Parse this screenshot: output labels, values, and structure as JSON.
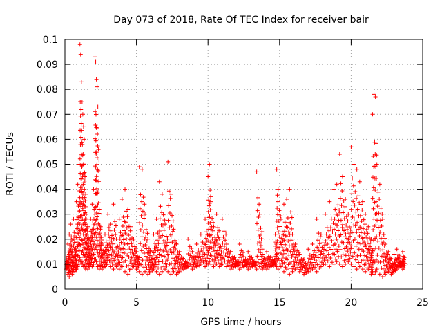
{
  "chart_data": {
    "type": "scatter",
    "title": "Day 073 of 2018, Rate Of TEC Index for receiver bair",
    "xlabel": "GPS time / hours",
    "ylabel": "ROTI / TECUs",
    "xlim": [
      0,
      25
    ],
    "ylim": [
      0,
      0.1
    ],
    "xticks": [
      0,
      5,
      10,
      15,
      20,
      25
    ],
    "xtick_labels": [
      "0",
      "5",
      "10",
      "15",
      "20",
      "25"
    ],
    "yticks": [
      0,
      0.01,
      0.02,
      0.03,
      0.04,
      0.05,
      0.06,
      0.07,
      0.08,
      0.09,
      0.1
    ],
    "ytick_labels": [
      "0",
      "0.01",
      "0.02",
      "0.03",
      "0.04",
      "0.05",
      "0.06",
      "0.07",
      "0.08",
      "0.09",
      "0.1"
    ],
    "grid": true,
    "marker": "+",
    "color": "#ff0000",
    "series": [
      {
        "x": [
          0.1,
          0.2,
          0.3,
          0.4,
          0.5,
          0.6,
          0.7,
          0.8,
          0.9,
          1.0,
          1.05,
          1.1,
          1.15,
          1.2,
          1.25,
          1.3,
          1.35,
          1.4,
          1.45,
          1.5,
          1.6,
          1.7,
          1.8,
          1.9,
          2.0,
          2.1,
          2.15,
          2.2,
          2.25,
          2.3,
          2.4,
          2.5,
          2.6,
          2.8,
          3.0,
          3.2,
          3.4,
          3.6,
          3.8,
          4.0,
          4.2,
          4.4,
          4.6,
          4.8,
          5.0,
          5.2,
          5.4,
          5.6,
          5.8,
          6.0,
          6.2,
          6.4,
          6.6,
          6.8,
          7.0,
          7.2,
          7.4,
          7.6,
          7.8,
          8.0,
          8.3,
          8.6,
          8.9,
          9.2,
          9.5,
          9.8,
          10.0,
          10.1,
          10.2,
          10.4,
          10.6,
          10.8,
          11.0,
          11.3,
          11.6,
          11.9,
          12.2,
          12.5,
          12.8,
          13.1,
          13.4,
          13.6,
          13.8,
          14.1,
          14.4,
          14.7,
          14.8,
          14.9,
          15.1,
          15.3,
          15.5,
          15.7,
          15.9,
          16.1,
          16.4,
          16.7,
          17.0,
          17.3,
          17.6,
          17.9,
          18.2,
          18.5,
          18.8,
          19.0,
          19.2,
          19.4,
          19.6,
          19.8,
          20.0,
          20.2,
          20.4,
          20.6,
          20.8,
          21.0,
          21.2,
          21.4,
          21.5,
          21.6,
          21.7,
          21.8,
          22.0,
          22.2,
          22.4,
          22.6,
          22.8,
          23.0,
          23.2,
          23.4,
          23.6
        ],
        "y": [
          0.012,
          0.018,
          0.022,
          0.026,
          0.015,
          0.028,
          0.02,
          0.035,
          0.042,
          0.05,
          0.098,
          0.094,
          0.083,
          0.075,
          0.07,
          0.065,
          0.06,
          0.045,
          0.038,
          0.03,
          0.025,
          0.02,
          0.028,
          0.034,
          0.04,
          0.093,
          0.091,
          0.084,
          0.081,
          0.073,
          0.032,
          0.025,
          0.018,
          0.022,
          0.03,
          0.026,
          0.034,
          0.02,
          0.028,
          0.036,
          0.04,
          0.032,
          0.025,
          0.02,
          0.015,
          0.049,
          0.048,
          0.03,
          0.02,
          0.015,
          0.022,
          0.028,
          0.043,
          0.038,
          0.026,
          0.051,
          0.038,
          0.024,
          0.018,
          0.015,
          0.012,
          0.02,
          0.015,
          0.018,
          0.022,
          0.028,
          0.045,
          0.05,
          0.035,
          0.025,
          0.03,
          0.02,
          0.028,
          0.018,
          0.015,
          0.012,
          0.018,
          0.013,
          0.015,
          0.012,
          0.047,
          0.03,
          0.014,
          0.015,
          0.013,
          0.022,
          0.048,
          0.04,
          0.028,
          0.034,
          0.036,
          0.04,
          0.022,
          0.018,
          0.014,
          0.012,
          0.016,
          0.018,
          0.028,
          0.022,
          0.03,
          0.035,
          0.04,
          0.042,
          0.054,
          0.045,
          0.036,
          0.03,
          0.057,
          0.05,
          0.048,
          0.043,
          0.035,
          0.03,
          0.025,
          0.02,
          0.07,
          0.078,
          0.077,
          0.05,
          0.042,
          0.028,
          0.018,
          0.015,
          0.012,
          0.014,
          0.016,
          0.012,
          0.015
        ],
        "y_low": [
          0.008,
          0.006,
          0.005,
          0.007,
          0.006,
          0.008,
          0.007,
          0.008,
          0.009,
          0.01,
          0.012,
          0.011,
          0.01,
          0.011,
          0.01,
          0.009,
          0.01,
          0.009,
          0.008,
          0.009,
          0.008,
          0.009,
          0.01,
          0.009,
          0.01,
          0.011,
          0.012,
          0.011,
          0.01,
          0.009,
          0.008,
          0.009,
          0.008,
          0.009,
          0.01,
          0.009,
          0.008,
          0.009,
          0.008,
          0.009,
          0.007,
          0.006,
          0.008,
          0.009,
          0.008,
          0.007,
          0.006,
          0.007,
          0.006,
          0.007,
          0.008,
          0.007,
          0.006,
          0.007,
          0.008,
          0.007,
          0.006,
          0.007,
          0.006,
          0.007,
          0.008,
          0.009,
          0.008,
          0.009,
          0.01,
          0.009,
          0.01,
          0.011,
          0.01,
          0.009,
          0.01,
          0.009,
          0.01,
          0.009,
          0.008,
          0.009,
          0.008,
          0.009,
          0.008,
          0.009,
          0.008,
          0.009,
          0.008,
          0.008,
          0.009,
          0.01,
          0.009,
          0.008,
          0.009,
          0.007,
          0.008,
          0.006,
          0.007,
          0.008,
          0.007,
          0.006,
          0.007,
          0.008,
          0.007,
          0.009,
          0.01,
          0.009,
          0.01,
          0.011,
          0.01,
          0.009,
          0.01,
          0.011,
          0.01,
          0.009,
          0.008,
          0.009,
          0.008,
          0.007,
          0.008,
          0.006,
          0.007,
          0.006,
          0.007,
          0.008,
          0.006,
          0.005,
          0.006,
          0.007,
          0.006,
          0.007,
          0.008,
          0.009,
          0.008
        ]
      }
    ]
  }
}
